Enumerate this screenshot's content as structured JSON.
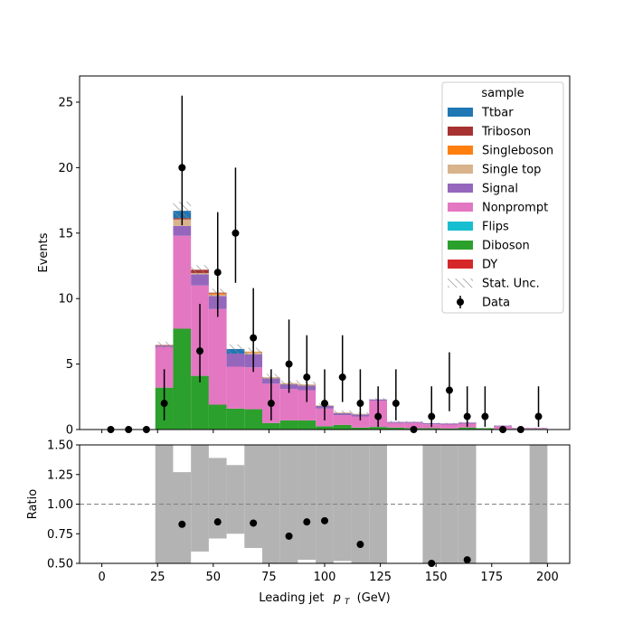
{
  "chart_data": {
    "type": "histogram-stacked-with-ratio",
    "xlabel_main": "Leading jet",
    "xlabel_math": "p",
    "xlabel_sub": "T",
    "xlabel_unit": "(GeV)",
    "main": {
      "ylabel": "Events",
      "xlim": [
        -10,
        210
      ],
      "ylim": [
        0,
        27
      ],
      "yticks": [
        0,
        5,
        10,
        15,
        20,
        25
      ],
      "xticks": [
        0,
        25,
        50,
        75,
        100,
        125,
        150,
        175,
        200
      ],
      "legend": {
        "title": "sample",
        "placement": "top-right",
        "entries": [
          {
            "label": "Ttbar",
            "kind": "patch",
            "color": "#1f77b4"
          },
          {
            "label": "Triboson",
            "kind": "patch",
            "color": "#a83232"
          },
          {
            "label": "Singleboson",
            "kind": "patch",
            "color": "#ff7f0e"
          },
          {
            "label": "Single top",
            "kind": "patch",
            "color": "#d9b38c"
          },
          {
            "label": "Signal",
            "kind": "patch",
            "color": "#9467bd"
          },
          {
            "label": "Nonprompt",
            "kind": "patch",
            "color": "#e377c2"
          },
          {
            "label": "Flips",
            "kind": "patch",
            "color": "#17becf"
          },
          {
            "label": "Diboson",
            "kind": "patch",
            "color": "#2ca02c"
          },
          {
            "label": "DY",
            "kind": "patch",
            "color": "#d62728"
          },
          {
            "label": "Stat. Unc.",
            "kind": "hatch",
            "color": "#888888"
          },
          {
            "label": "Data",
            "kind": "marker",
            "color": "#000000"
          }
        ]
      },
      "bin_edges": [
        24,
        32,
        40,
        48,
        56,
        64,
        72,
        80,
        88,
        96,
        104,
        112,
        120,
        128,
        136,
        144,
        152,
        160,
        168,
        176,
        184,
        192,
        200
      ],
      "stack": [
        {
          "name": "Diboson",
          "color": "#2ca02c",
          "values": [
            3.2,
            7.7,
            4.1,
            1.9,
            1.6,
            1.55,
            0.5,
            0.7,
            0.7,
            0.25,
            0.35,
            0.15,
            0.2,
            0.15,
            0.1,
            0.1,
            0.08,
            0.15,
            0.1,
            0.05,
            0.05,
            0.05
          ]
        },
        {
          "name": "Nonprompt",
          "color": "#e377c2",
          "values": [
            3.1,
            7.1,
            6.9,
            7.3,
            3.2,
            3.2,
            3.0,
            2.4,
            2.3,
            1.35,
            0.75,
            0.85,
            2.0,
            0.35,
            0.4,
            0.3,
            0.3,
            0.3,
            0.0,
            0.2,
            0.05,
            0.05
          ]
        },
        {
          "name": "Signal",
          "color": "#9467bd",
          "values": [
            0.1,
            0.75,
            0.85,
            1.0,
            1.0,
            1.0,
            0.4,
            0.35,
            0.35,
            0.2,
            0.15,
            0.15,
            0.1,
            0.08,
            0.08,
            0.08,
            0.08,
            0.08,
            0.0,
            0.05,
            0.02,
            0.02
          ]
        },
        {
          "name": "Single top",
          "color": "#d9b38c",
          "values": [
            0.0,
            0.5,
            0.1,
            0.1,
            0.0,
            0.15,
            0.1,
            0.1,
            0.1,
            0.05,
            0.05,
            0.05,
            0.0,
            0.0,
            0.0,
            0.0,
            0.0,
            0.0,
            0.0,
            0.0,
            0.0,
            0.0
          ]
        },
        {
          "name": "Singleboson",
          "color": "#ff7f0e",
          "values": [
            0.0,
            0.0,
            0.0,
            0.1,
            0.0,
            0.05,
            0.0,
            0.0,
            0.0,
            0.0,
            0.0,
            0.0,
            0.0,
            0.0,
            0.0,
            0.0,
            0.0,
            0.0,
            0.0,
            0.0,
            0.0,
            0.0
          ]
        },
        {
          "name": "Triboson",
          "color": "#a83232",
          "values": [
            0.05,
            0.1,
            0.25,
            0.05,
            0.0,
            0.0,
            0.0,
            0.0,
            0.0,
            0.0,
            0.0,
            0.0,
            0.0,
            0.0,
            0.0,
            0.0,
            0.0,
            0.0,
            0.0,
            0.0,
            0.0,
            0.0
          ]
        },
        {
          "name": "Ttbar",
          "color": "#1f77b4",
          "values": [
            0.0,
            0.55,
            0.0,
            0.0,
            0.35,
            0.0,
            0.0,
            0.0,
            0.0,
            0.0,
            0.0,
            0.0,
            0.0,
            0.0,
            0.0,
            0.0,
            0.0,
            0.0,
            0.0,
            0.0,
            0.0,
            0.0
          ]
        }
      ],
      "stat_unc": [
        0.25,
        0.7,
        0.35,
        0.3,
        0.35,
        0.3,
        0.25,
        0.2,
        0.2,
        0.15,
        0.15,
        0.12,
        0.1,
        0.08,
        0.06,
        0.06,
        0.06,
        0.06,
        0.04,
        0.04,
        0.03,
        0.03
      ],
      "data": {
        "x": [
          4,
          12,
          20,
          28,
          36,
          44,
          52,
          60,
          68,
          76,
          84,
          92,
          100,
          108,
          116,
          124,
          132,
          140,
          148,
          156,
          164,
          172,
          180,
          188,
          196
        ],
        "y": [
          0,
          0,
          0,
          2,
          20,
          6,
          12,
          15,
          7,
          2,
          5,
          4,
          2,
          4,
          2,
          1,
          2,
          0,
          1,
          3,
          1,
          1,
          0,
          0,
          1
        ],
        "yerr_up": [
          0,
          0,
          0,
          2.6,
          5.5,
          3.6,
          4.6,
          5.0,
          3.8,
          2.6,
          3.4,
          3.2,
          2.6,
          3.2,
          2.6,
          2.3,
          2.6,
          0,
          2.3,
          2.9,
          2.3,
          2.3,
          0,
          0,
          2.3
        ],
        "yerr_down": [
          0,
          0,
          0,
          1.3,
          4.4,
          2.4,
          3.4,
          3.8,
          2.6,
          1.3,
          2.2,
          1.9,
          1.3,
          1.9,
          1.3,
          0.8,
          1.3,
          0,
          0.8,
          1.6,
          0.8,
          0.8,
          0,
          0,
          0.8
        ]
      }
    },
    "ratio": {
      "ylabel": "Ratio",
      "ylim": [
        0.5,
        1.5
      ],
      "yticks": [
        0.5,
        0.75,
        1.0,
        1.25,
        1.5
      ],
      "ytick_labels": [
        "0.50",
        "0.75",
        "1.00",
        "1.25",
        "1.50"
      ],
      "reference_line": 1.0,
      "band_color": "#b3b3b3",
      "band": [
        {
          "x0": 24,
          "x1": 32,
          "lo": 0.5,
          "hi": 1.5
        },
        {
          "x0": 32,
          "x1": 40,
          "lo": 0.5,
          "hi": 1.27
        },
        {
          "x0": 40,
          "x1": 48,
          "lo": 0.6,
          "hi": 1.5
        },
        {
          "x0": 48,
          "x1": 56,
          "lo": 0.71,
          "hi": 1.39
        },
        {
          "x0": 56,
          "x1": 64,
          "lo": 0.75,
          "hi": 1.33
        },
        {
          "x0": 64,
          "x1": 72,
          "lo": 0.63,
          "hi": 1.5
        },
        {
          "x0": 72,
          "x1": 80,
          "lo": 0.5,
          "hi": 1.5
        },
        {
          "x0": 80,
          "x1": 88,
          "lo": 0.5,
          "hi": 1.5
        },
        {
          "x0": 88,
          "x1": 96,
          "lo": 0.53,
          "hi": 1.5
        },
        {
          "x0": 96,
          "x1": 104,
          "lo": 0.5,
          "hi": 1.5
        },
        {
          "x0": 104,
          "x1": 112,
          "lo": 0.52,
          "hi": 1.5
        },
        {
          "x0": 112,
          "x1": 120,
          "lo": 0.5,
          "hi": 1.5
        },
        {
          "x0": 120,
          "x1": 128,
          "lo": 0.5,
          "hi": 1.5
        },
        {
          "x0": 144,
          "x1": 152,
          "lo": 0.5,
          "hi": 1.5
        },
        {
          "x0": 152,
          "x1": 160,
          "lo": 0.5,
          "hi": 1.5
        },
        {
          "x0": 160,
          "x1": 168,
          "lo": 0.5,
          "hi": 1.5
        },
        {
          "x0": 192,
          "x1": 200,
          "lo": 0.5,
          "hi": 1.5
        }
      ],
      "points": {
        "x": [
          36,
          52,
          68,
          84,
          92,
          100,
          116,
          148,
          164
        ],
        "y": [
          0.83,
          0.85,
          0.84,
          0.73,
          0.85,
          0.86,
          0.66,
          0.5,
          0.53
        ]
      }
    }
  }
}
